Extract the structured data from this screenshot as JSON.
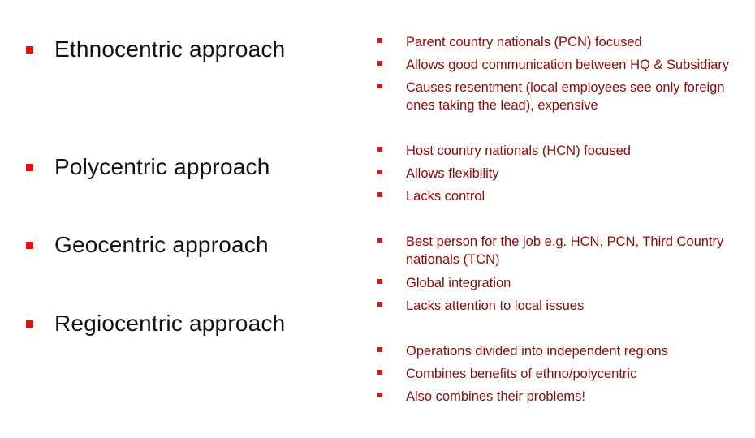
{
  "slide": {
    "approaches": [
      {
        "name": "Ethnocentric approach",
        "points": [
          "Parent country nationals (PCN) focused",
          "Allows good communication between HQ & Subsidiary",
          "Causes resentment (local employees see only foreign ones taking the lead), expensive"
        ]
      },
      {
        "name": "Polycentric approach",
        "points": [
          "Host country nationals (HCN) focused",
          "Allows flexibility",
          "Lacks control"
        ]
      },
      {
        "name": "Geocentric approach",
        "points": [
          "Best person for the job  e.g. HCN, PCN, Third Country nationals (TCN)",
          "Global integration",
          "Lacks attention to local issues"
        ]
      },
      {
        "name": "Regiocentric approach",
        "points": [
          "Operations divided into independent regions",
          "Combines benefits of ethno/polycentric",
          "Also combines their problems!"
        ]
      }
    ],
    "colors": {
      "bullet": "#e8100c",
      "heading_text": "#111111",
      "point_text": "#8b0a0a"
    }
  }
}
